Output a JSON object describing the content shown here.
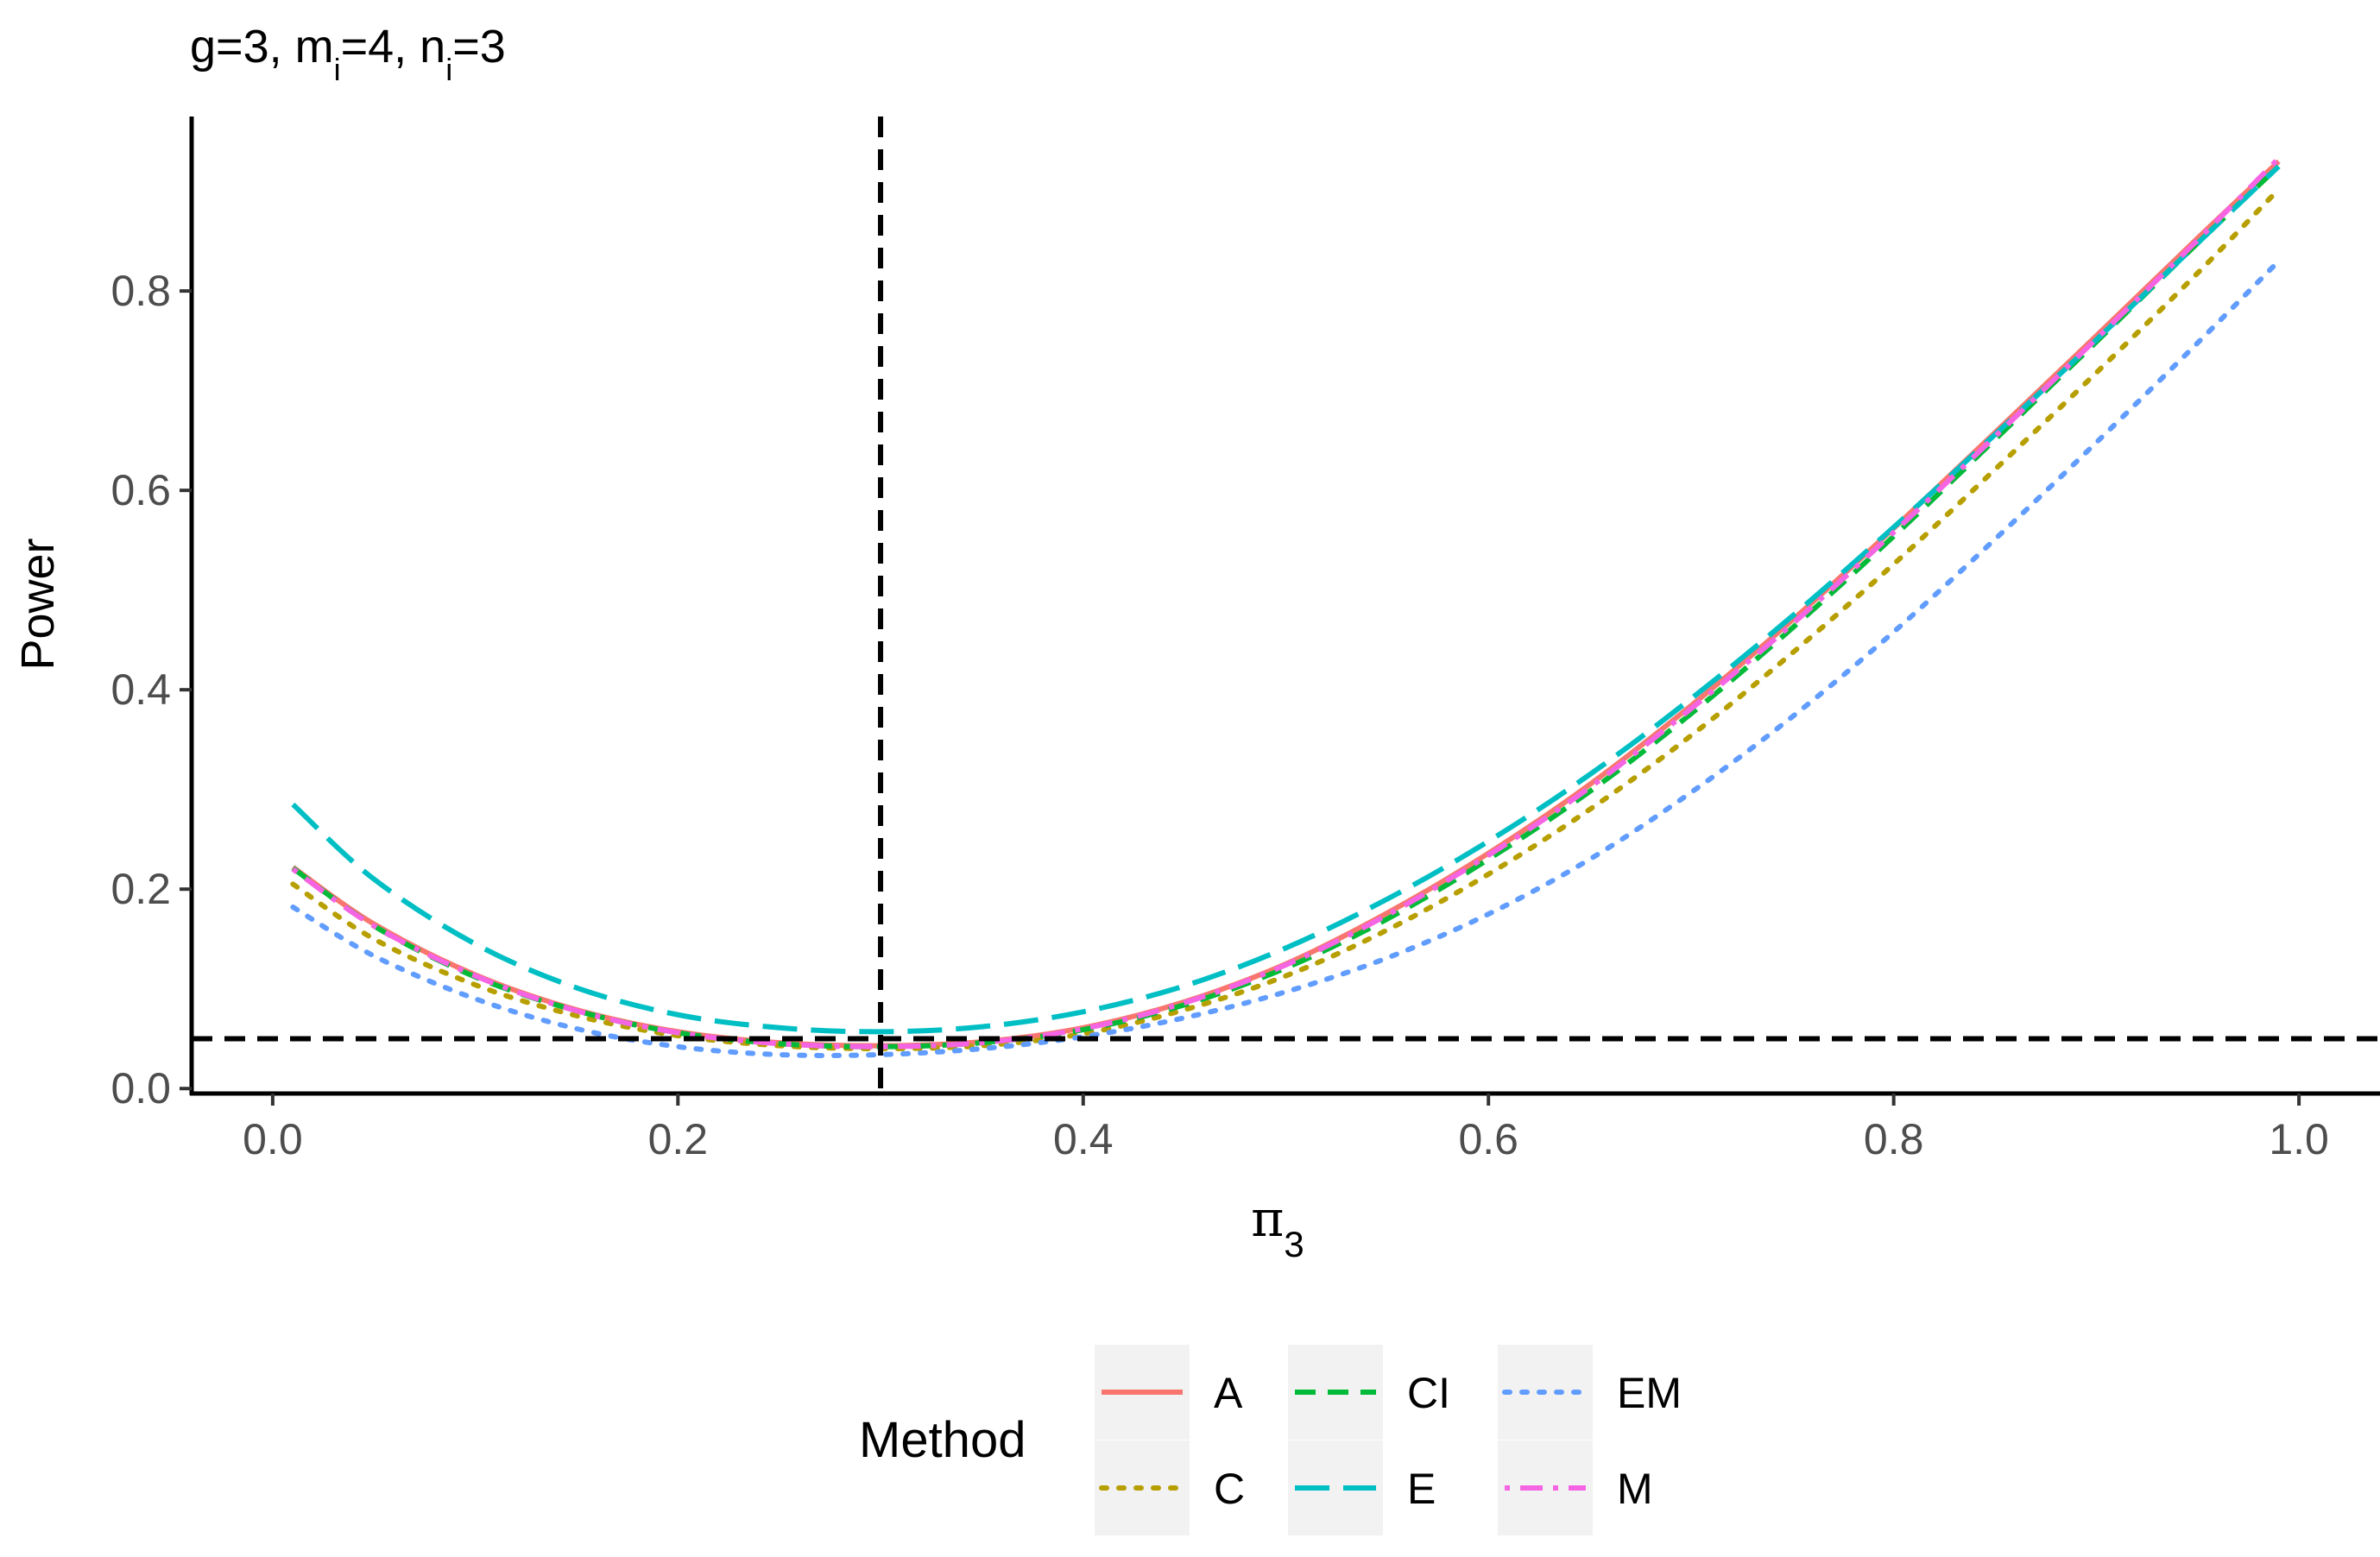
{
  "chart_data": {
    "type": "line",
    "title": {
      "parts": [
        "g=3, m",
        "i",
        "=4, n",
        "i",
        "=3"
      ]
    },
    "xlabel": {
      "symbol": "π",
      "subscript": "3"
    },
    "ylabel": "Power",
    "xlim": [
      -0.04,
      1.04
    ],
    "ylim": [
      -0.005,
      0.975
    ],
    "xticks": [
      0.0,
      0.2,
      0.4,
      0.6,
      0.8,
      1.0
    ],
    "xtick_labels": [
      "0.0",
      "0.2",
      "0.4",
      "0.6",
      "0.8",
      "1.0"
    ],
    "yticks": [
      0.0,
      0.2,
      0.4,
      0.6,
      0.8
    ],
    "ytick_labels": [
      "0.0",
      "0.2",
      "0.4",
      "0.6",
      "0.8"
    ],
    "reference_lines": {
      "vline_x": 0.3,
      "hline_y": 0.05
    },
    "grid": false,
    "x": [
      0.01,
      0.05,
      0.1,
      0.15,
      0.2,
      0.25,
      0.3,
      0.35,
      0.4,
      0.45,
      0.5,
      0.55,
      0.6,
      0.65,
      0.7,
      0.75,
      0.8,
      0.85,
      0.9,
      0.95,
      0.99
    ],
    "series": [
      {
        "name": "A",
        "color": "#F8766D",
        "dash": "solid",
        "values": [
          0.222,
          0.165,
          0.114,
          0.079,
          0.057,
          0.046,
          0.043,
          0.047,
          0.061,
          0.087,
          0.125,
          0.176,
          0.236,
          0.305,
          0.384,
          0.47,
          0.562,
          0.658,
          0.755,
          0.853,
          0.93
        ]
      },
      {
        "name": "C",
        "color": "#B79F00",
        "dash": "dotted",
        "values": [
          0.205,
          0.15,
          0.104,
          0.073,
          0.053,
          0.043,
          0.04,
          0.043,
          0.055,
          0.079,
          0.113,
          0.159,
          0.215,
          0.28,
          0.354,
          0.437,
          0.526,
          0.621,
          0.718,
          0.818,
          0.902
        ]
      },
      {
        "name": "CI",
        "color": "#00BA38",
        "dash": "dashed",
        "values": [
          0.221,
          0.163,
          0.112,
          0.078,
          0.056,
          0.045,
          0.042,
          0.046,
          0.059,
          0.084,
          0.121,
          0.17,
          0.23,
          0.298,
          0.376,
          0.462,
          0.554,
          0.651,
          0.749,
          0.848,
          0.925
        ]
      },
      {
        "name": "E",
        "color": "#00BFC4",
        "dash": "longdash",
        "values": [
          0.285,
          0.21,
          0.145,
          0.101,
          0.074,
          0.061,
          0.057,
          0.062,
          0.077,
          0.103,
          0.141,
          0.19,
          0.248,
          0.315,
          0.391,
          0.474,
          0.563,
          0.656,
          0.751,
          0.848,
          0.925
        ]
      },
      {
        "name": "EM",
        "color": "#619CFF",
        "dash": "dotted",
        "values": [
          0.182,
          0.133,
          0.09,
          0.06,
          0.042,
          0.034,
          0.034,
          0.04,
          0.052,
          0.071,
          0.097,
          0.131,
          0.175,
          0.23,
          0.297,
          0.373,
          0.458,
          0.551,
          0.648,
          0.748,
          0.83
        ]
      },
      {
        "name": "M",
        "color": "#F564E3",
        "dash": "dotdash",
        "values": [
          0.22,
          0.163,
          0.113,
          0.078,
          0.056,
          0.045,
          0.042,
          0.046,
          0.06,
          0.086,
          0.124,
          0.174,
          0.234,
          0.302,
          0.381,
          0.466,
          0.558,
          0.654,
          0.752,
          0.851,
          0.933
        ]
      }
    ],
    "legend": {
      "title": "Method",
      "position": "bottom",
      "columns": [
        [
          "A",
          "C"
        ],
        [
          "CI",
          "E"
        ],
        [
          "EM",
          "M"
        ]
      ]
    }
  }
}
